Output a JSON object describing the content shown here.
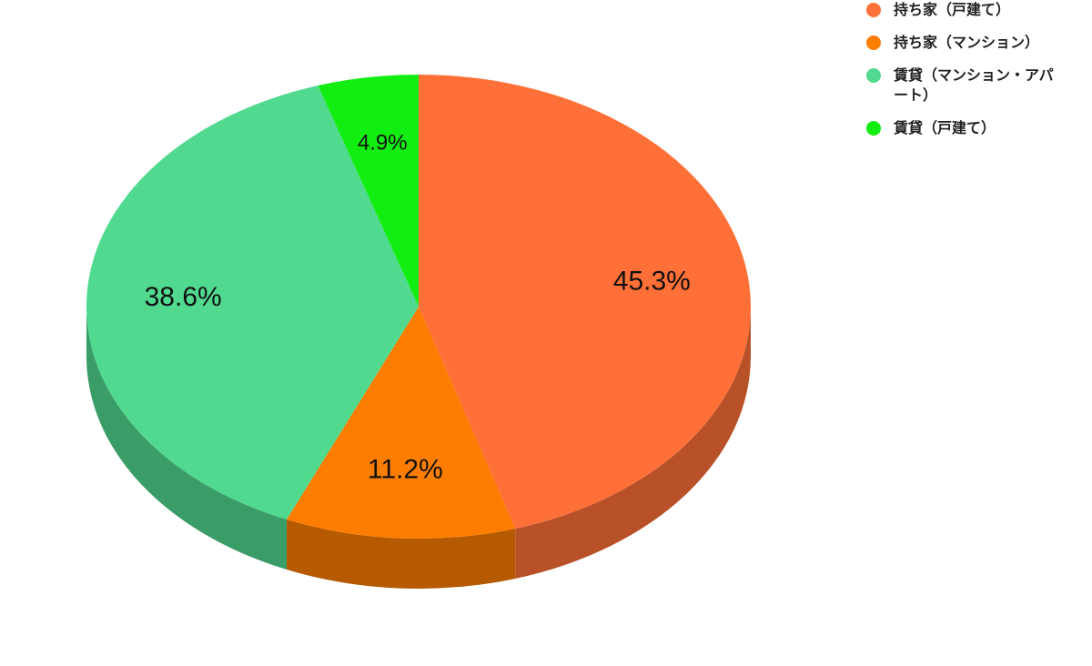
{
  "chart_data": {
    "type": "pie",
    "categories": [
      "持ち家（戸建て）",
      "持ち家（マンション）",
      "賃貸（マンション・アパート）",
      "賃貸（戸建て）"
    ],
    "values": [
      45.3,
      11.2,
      38.6,
      4.9
    ],
    "value_labels": [
      "45.3%",
      "11.2%",
      "38.6%",
      "4.9%"
    ],
    "colors": [
      "#ff7038",
      "#fc7d00",
      "#50d98f",
      "#12ee12"
    ],
    "legend": "top-right"
  }
}
